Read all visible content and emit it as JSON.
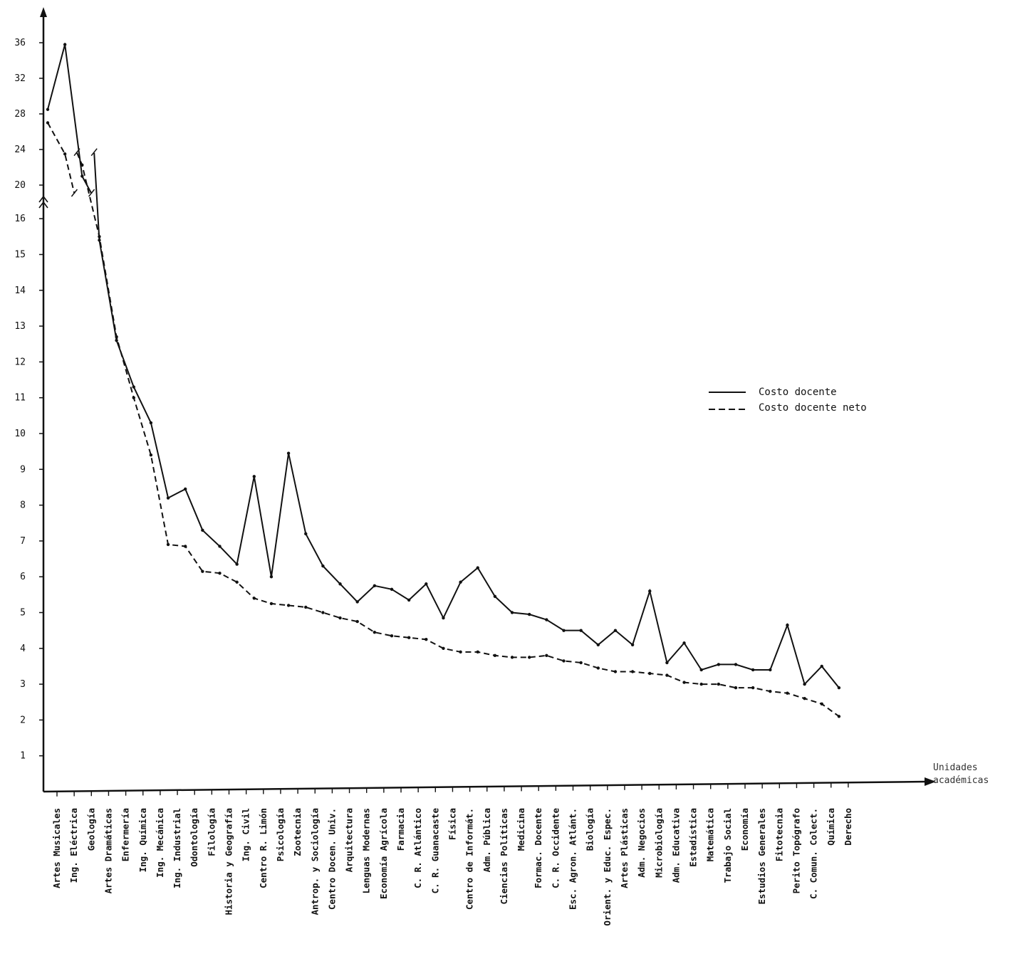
{
  "chart_data": {
    "type": "line",
    "xlabel": "Unidades académicas",
    "y_break": [
      16,
      20
    ],
    "y_ticks_lower": [
      1,
      2,
      3,
      4,
      5,
      6,
      7,
      8,
      9,
      10,
      11,
      12,
      13,
      14,
      15,
      16
    ],
    "y_ticks_upper": [
      20,
      24,
      28,
      32,
      36
    ],
    "grid": false,
    "legend_position": "right",
    "categories": [
      "Artes Musicales",
      "Ing. Eléctrica",
      "Geología",
      "Artes Dramáticas",
      "Enfermería",
      "Ing. Química",
      "Ing. Mecánica",
      "Ing. Industrial",
      "Odontología",
      "Filología",
      "Historia y Geografía",
      "Ing. Civil",
      "Centro R. Limón",
      "Psicología",
      "Zootecnia",
      "Antrop. y Sociología",
      "Centro Docen. Univ.",
      "Arquitectura",
      "Lenguas Modernas",
      "Economía Agrícola",
      "Farmacia",
      "C. R. Atlántico",
      "C. R. Guanacaste",
      "Física",
      "Centro de Informát.",
      "Adm. Pública",
      "Ciencias Políticas",
      "Medicina",
      "Formac. Docente",
      "C. R. Occidente",
      "Esc. Agron. Atlánt.",
      "Biología",
      "Orient. y Educ. Espec.",
      "Artes Plásticas",
      "Adm. Negocios",
      "Microbiología",
      "Adm. Educativa",
      "Estadística",
      "Matemática",
      "Trabajo Social",
      "Economía",
      "Estudios Generales",
      "Fitotecnia",
      "Perito Topógrafo",
      "C. Comun. Colect.",
      "Química",
      "Derecho"
    ],
    "series": [
      {
        "name": "Costo docente",
        "style": "solid",
        "color": "#111111",
        "values": [
          28.5,
          35.8,
          21.0,
          15.4,
          12.6,
          11.3,
          10.3,
          8.2,
          8.45,
          7.3,
          6.85,
          6.35,
          8.8,
          6.0,
          9.45,
          7.2,
          6.3,
          5.8,
          5.3,
          5.75,
          5.65,
          5.35,
          5.8,
          4.85,
          5.85,
          6.25,
          5.45,
          5.0,
          4.95,
          4.8,
          4.5,
          4.5,
          4.1,
          4.5,
          4.1,
          5.6,
          3.6,
          4.15,
          3.4,
          3.55,
          3.55,
          3.4,
          3.4,
          4.65,
          3.0,
          3.5,
          2.9
        ]
      },
      {
        "name": "Costo docente neto",
        "style": "dashed",
        "color": "#111111",
        "values": [
          27.0,
          23.5,
          17.5,
          15.5,
          12.7,
          11.0,
          9.4,
          6.9,
          6.85,
          6.15,
          6.1,
          5.85,
          5.4,
          5.25,
          5.2,
          5.15,
          5.0,
          4.85,
          4.75,
          4.45,
          4.35,
          4.3,
          4.25,
          4.0,
          3.9,
          3.9,
          3.8,
          3.75,
          3.75,
          3.8,
          3.65,
          3.6,
          3.45,
          3.35,
          3.35,
          3.3,
          3.25,
          3.05,
          3.0,
          3.0,
          2.9,
          2.9,
          2.8,
          2.75,
          2.6,
          2.45,
          2.1
        ]
      }
    ]
  }
}
